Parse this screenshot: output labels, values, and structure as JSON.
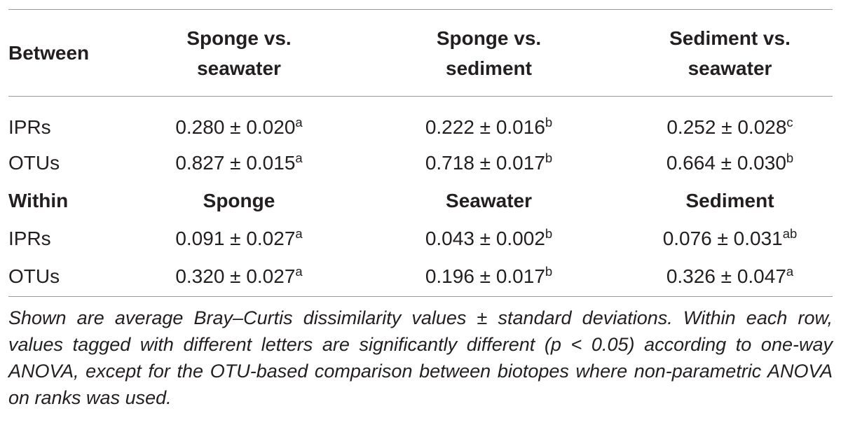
{
  "table": {
    "sections": [
      {
        "header": [
          "Between",
          "Sponge vs. seawater",
          "Sponge vs. sediment",
          "Sediment vs. seawater"
        ],
        "rows": [
          {
            "label": "IPRs",
            "cells": [
              {
                "value": "0.280 ± 0.020",
                "sup": "a"
              },
              {
                "value": "0.222 ± 0.016",
                "sup": "b"
              },
              {
                "value": "0.252 ± 0.028",
                "sup": "c"
              }
            ]
          },
          {
            "label": "OTUs",
            "cells": [
              {
                "value": "0.827 ± 0.015",
                "sup": "a"
              },
              {
                "value": "0.718 ± 0.017",
                "sup": "b"
              },
              {
                "value": "0.664 ± 0.030",
                "sup": "b"
              }
            ]
          }
        ]
      },
      {
        "header": [
          "Within",
          "Sponge",
          "Seawater",
          "Sediment"
        ],
        "rows": [
          {
            "label": "IPRs",
            "cells": [
              {
                "value": "0.091 ± 0.027",
                "sup": "a"
              },
              {
                "value": "0.043 ± 0.002",
                "sup": "b"
              },
              {
                "value": "0.076 ± 0.031",
                "sup": "ab"
              }
            ]
          },
          {
            "label": "OTUs",
            "cells": [
              {
                "value": "0.320 ± 0.027",
                "sup": "a"
              },
              {
                "value": "0.196 ± 0.017",
                "sup": "b"
              },
              {
                "value": "0.326 ± 0.047",
                "sup": "a"
              }
            ]
          }
        ]
      }
    ],
    "footnote": "Shown are average Bray–Curtis dissimilarity values ± standard deviations. Within each row, values tagged with different letters are significantly different (p < 0.05) according to one-way ANOVA, except for the OTU-based comparison between biotopes where non-parametric ANOVA on ranks was used."
  }
}
